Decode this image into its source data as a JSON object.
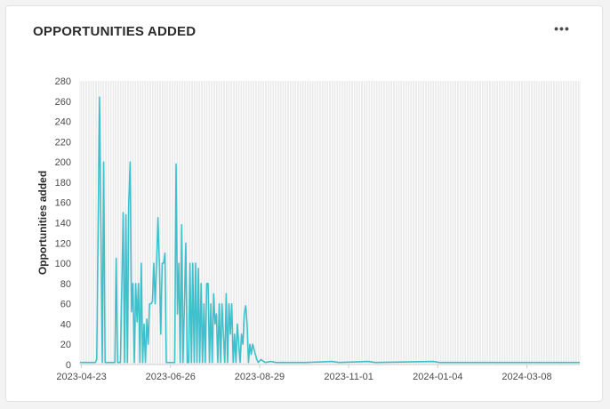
{
  "card": {
    "title": "OPPORTUNITIES ADDED",
    "menu_icon": "more-horizontal-icon",
    "menu_label": "•••"
  },
  "colors": {
    "series": "#3ec1cc",
    "grid": "#d7d7d7",
    "axis": "#cfcfcf"
  },
  "chart_data": {
    "type": "line",
    "title": "",
    "xlabel": "",
    "ylabel": "Opportunities added",
    "ylim": [
      0,
      280
    ],
    "y_ticks": [
      0,
      20,
      40,
      60,
      80,
      100,
      120,
      140,
      160,
      180,
      200,
      220,
      240,
      260,
      280
    ],
    "x_tick_labels": [
      "2023-04-23",
      "2023-06-26",
      "2023-08-29",
      "2023-11-01",
      "2024-01-04",
      "2024-03-08"
    ],
    "x_tick_dates": [
      "2023-04-23",
      "2023-06-26",
      "2023-08-29",
      "2023-11-01",
      "2024-01-04",
      "2024-03-08"
    ],
    "x_start": "2023-04-22",
    "x_end": "2024-04-15",
    "grid": "vertical-daily",
    "legend": "none",
    "series": [
      {
        "name": "",
        "points": [
          [
            "2023-04-22",
            2
          ],
          [
            "2023-04-29",
            2
          ],
          [
            "2023-05-03",
            2
          ],
          [
            "2023-05-04",
            5
          ],
          [
            "2023-05-06",
            264
          ],
          [
            "2023-05-08",
            2
          ],
          [
            "2023-05-09",
            200
          ],
          [
            "2023-05-10",
            2
          ],
          [
            "2023-05-15",
            2
          ],
          [
            "2023-05-17",
            2
          ],
          [
            "2023-05-18",
            105
          ],
          [
            "2023-05-19",
            2
          ],
          [
            "2023-05-21",
            2
          ],
          [
            "2023-05-23",
            150
          ],
          [
            "2023-05-24",
            2
          ],
          [
            "2023-05-25",
            148
          ],
          [
            "2023-05-26",
            2
          ],
          [
            "2023-05-27",
            160
          ],
          [
            "2023-05-28",
            200
          ],
          [
            "2023-05-29",
            52
          ],
          [
            "2023-05-30",
            80
          ],
          [
            "2023-05-31",
            2
          ],
          [
            "2023-06-01",
            80
          ],
          [
            "2023-06-02",
            42
          ],
          [
            "2023-06-03",
            80
          ],
          [
            "2023-06-04",
            2
          ],
          [
            "2023-06-05",
            100
          ],
          [
            "2023-06-06",
            2
          ],
          [
            "2023-06-07",
            40
          ],
          [
            "2023-06-08",
            2
          ],
          [
            "2023-06-09",
            45
          ],
          [
            "2023-06-10",
            20
          ],
          [
            "2023-06-11",
            60
          ],
          [
            "2023-06-12",
            60
          ],
          [
            "2023-06-13",
            62
          ],
          [
            "2023-06-14",
            100
          ],
          [
            "2023-06-15",
            60
          ],
          [
            "2023-06-16",
            100
          ],
          [
            "2023-06-17",
            145
          ],
          [
            "2023-06-18",
            100
          ],
          [
            "2023-06-19",
            30
          ],
          [
            "2023-06-20",
            100
          ],
          [
            "2023-06-21",
            100
          ],
          [
            "2023-06-22",
            110
          ],
          [
            "2023-06-23",
            2
          ],
          [
            "2023-06-28",
            2
          ],
          [
            "2023-06-29",
            2
          ],
          [
            "2023-06-30",
            198
          ],
          [
            "2023-07-01",
            50
          ],
          [
            "2023-07-02",
            100
          ],
          [
            "2023-07-03",
            2
          ],
          [
            "2023-07-04",
            138
          ],
          [
            "2023-07-05",
            2
          ],
          [
            "2023-07-06",
            60
          ],
          [
            "2023-07-07",
            120
          ],
          [
            "2023-07-08",
            2
          ],
          [
            "2023-07-09",
            2
          ],
          [
            "2023-07-10",
            100
          ],
          [
            "2023-07-11",
            2
          ],
          [
            "2023-07-12",
            100
          ],
          [
            "2023-07-13",
            2
          ],
          [
            "2023-07-14",
            100
          ],
          [
            "2023-07-15",
            2
          ],
          [
            "2023-07-16",
            95
          ],
          [
            "2023-07-17",
            2
          ],
          [
            "2023-07-18",
            80
          ],
          [
            "2023-07-19",
            2
          ],
          [
            "2023-07-20",
            60
          ],
          [
            "2023-07-21",
            2
          ],
          [
            "2023-07-22",
            80
          ],
          [
            "2023-07-23",
            80
          ],
          [
            "2023-07-24",
            2
          ],
          [
            "2023-07-25",
            60
          ],
          [
            "2023-07-26",
            2
          ],
          [
            "2023-07-27",
            70
          ],
          [
            "2023-07-28",
            40
          ],
          [
            "2023-07-29",
            50
          ],
          [
            "2023-07-30",
            2
          ],
          [
            "2023-07-31",
            60
          ],
          [
            "2023-08-01",
            2
          ],
          [
            "2023-08-02",
            60
          ],
          [
            "2023-08-03",
            30
          ],
          [
            "2023-08-04",
            2
          ],
          [
            "2023-08-05",
            70
          ],
          [
            "2023-08-06",
            2
          ],
          [
            "2023-08-07",
            60
          ],
          [
            "2023-08-08",
            30
          ],
          [
            "2023-08-09",
            60
          ],
          [
            "2023-08-10",
            2
          ],
          [
            "2023-08-11",
            30
          ],
          [
            "2023-08-12",
            2
          ],
          [
            "2023-08-13",
            40
          ],
          [
            "2023-08-14",
            20
          ],
          [
            "2023-08-15",
            2
          ],
          [
            "2023-08-16",
            30
          ],
          [
            "2023-08-17",
            20
          ],
          [
            "2023-08-18",
            50
          ],
          [
            "2023-08-19",
            58
          ],
          [
            "2023-08-20",
            40
          ],
          [
            "2023-08-21",
            2
          ],
          [
            "2023-08-22",
            20
          ],
          [
            "2023-08-23",
            10
          ],
          [
            "2023-08-24",
            20
          ],
          [
            "2023-08-25",
            15
          ],
          [
            "2023-08-26",
            10
          ],
          [
            "2023-08-27",
            5
          ],
          [
            "2023-08-28",
            2
          ],
          [
            "2023-08-30",
            5
          ],
          [
            "2023-09-02",
            2
          ],
          [
            "2023-09-06",
            3
          ],
          [
            "2023-09-10",
            2
          ],
          [
            "2023-10-01",
            2
          ],
          [
            "2023-10-20",
            3
          ],
          [
            "2023-10-25",
            2
          ],
          [
            "2023-11-15",
            3
          ],
          [
            "2023-11-20",
            2
          ],
          [
            "2024-01-01",
            3
          ],
          [
            "2024-01-05",
            2
          ],
          [
            "2024-04-15",
            2
          ]
        ]
      }
    ]
  }
}
